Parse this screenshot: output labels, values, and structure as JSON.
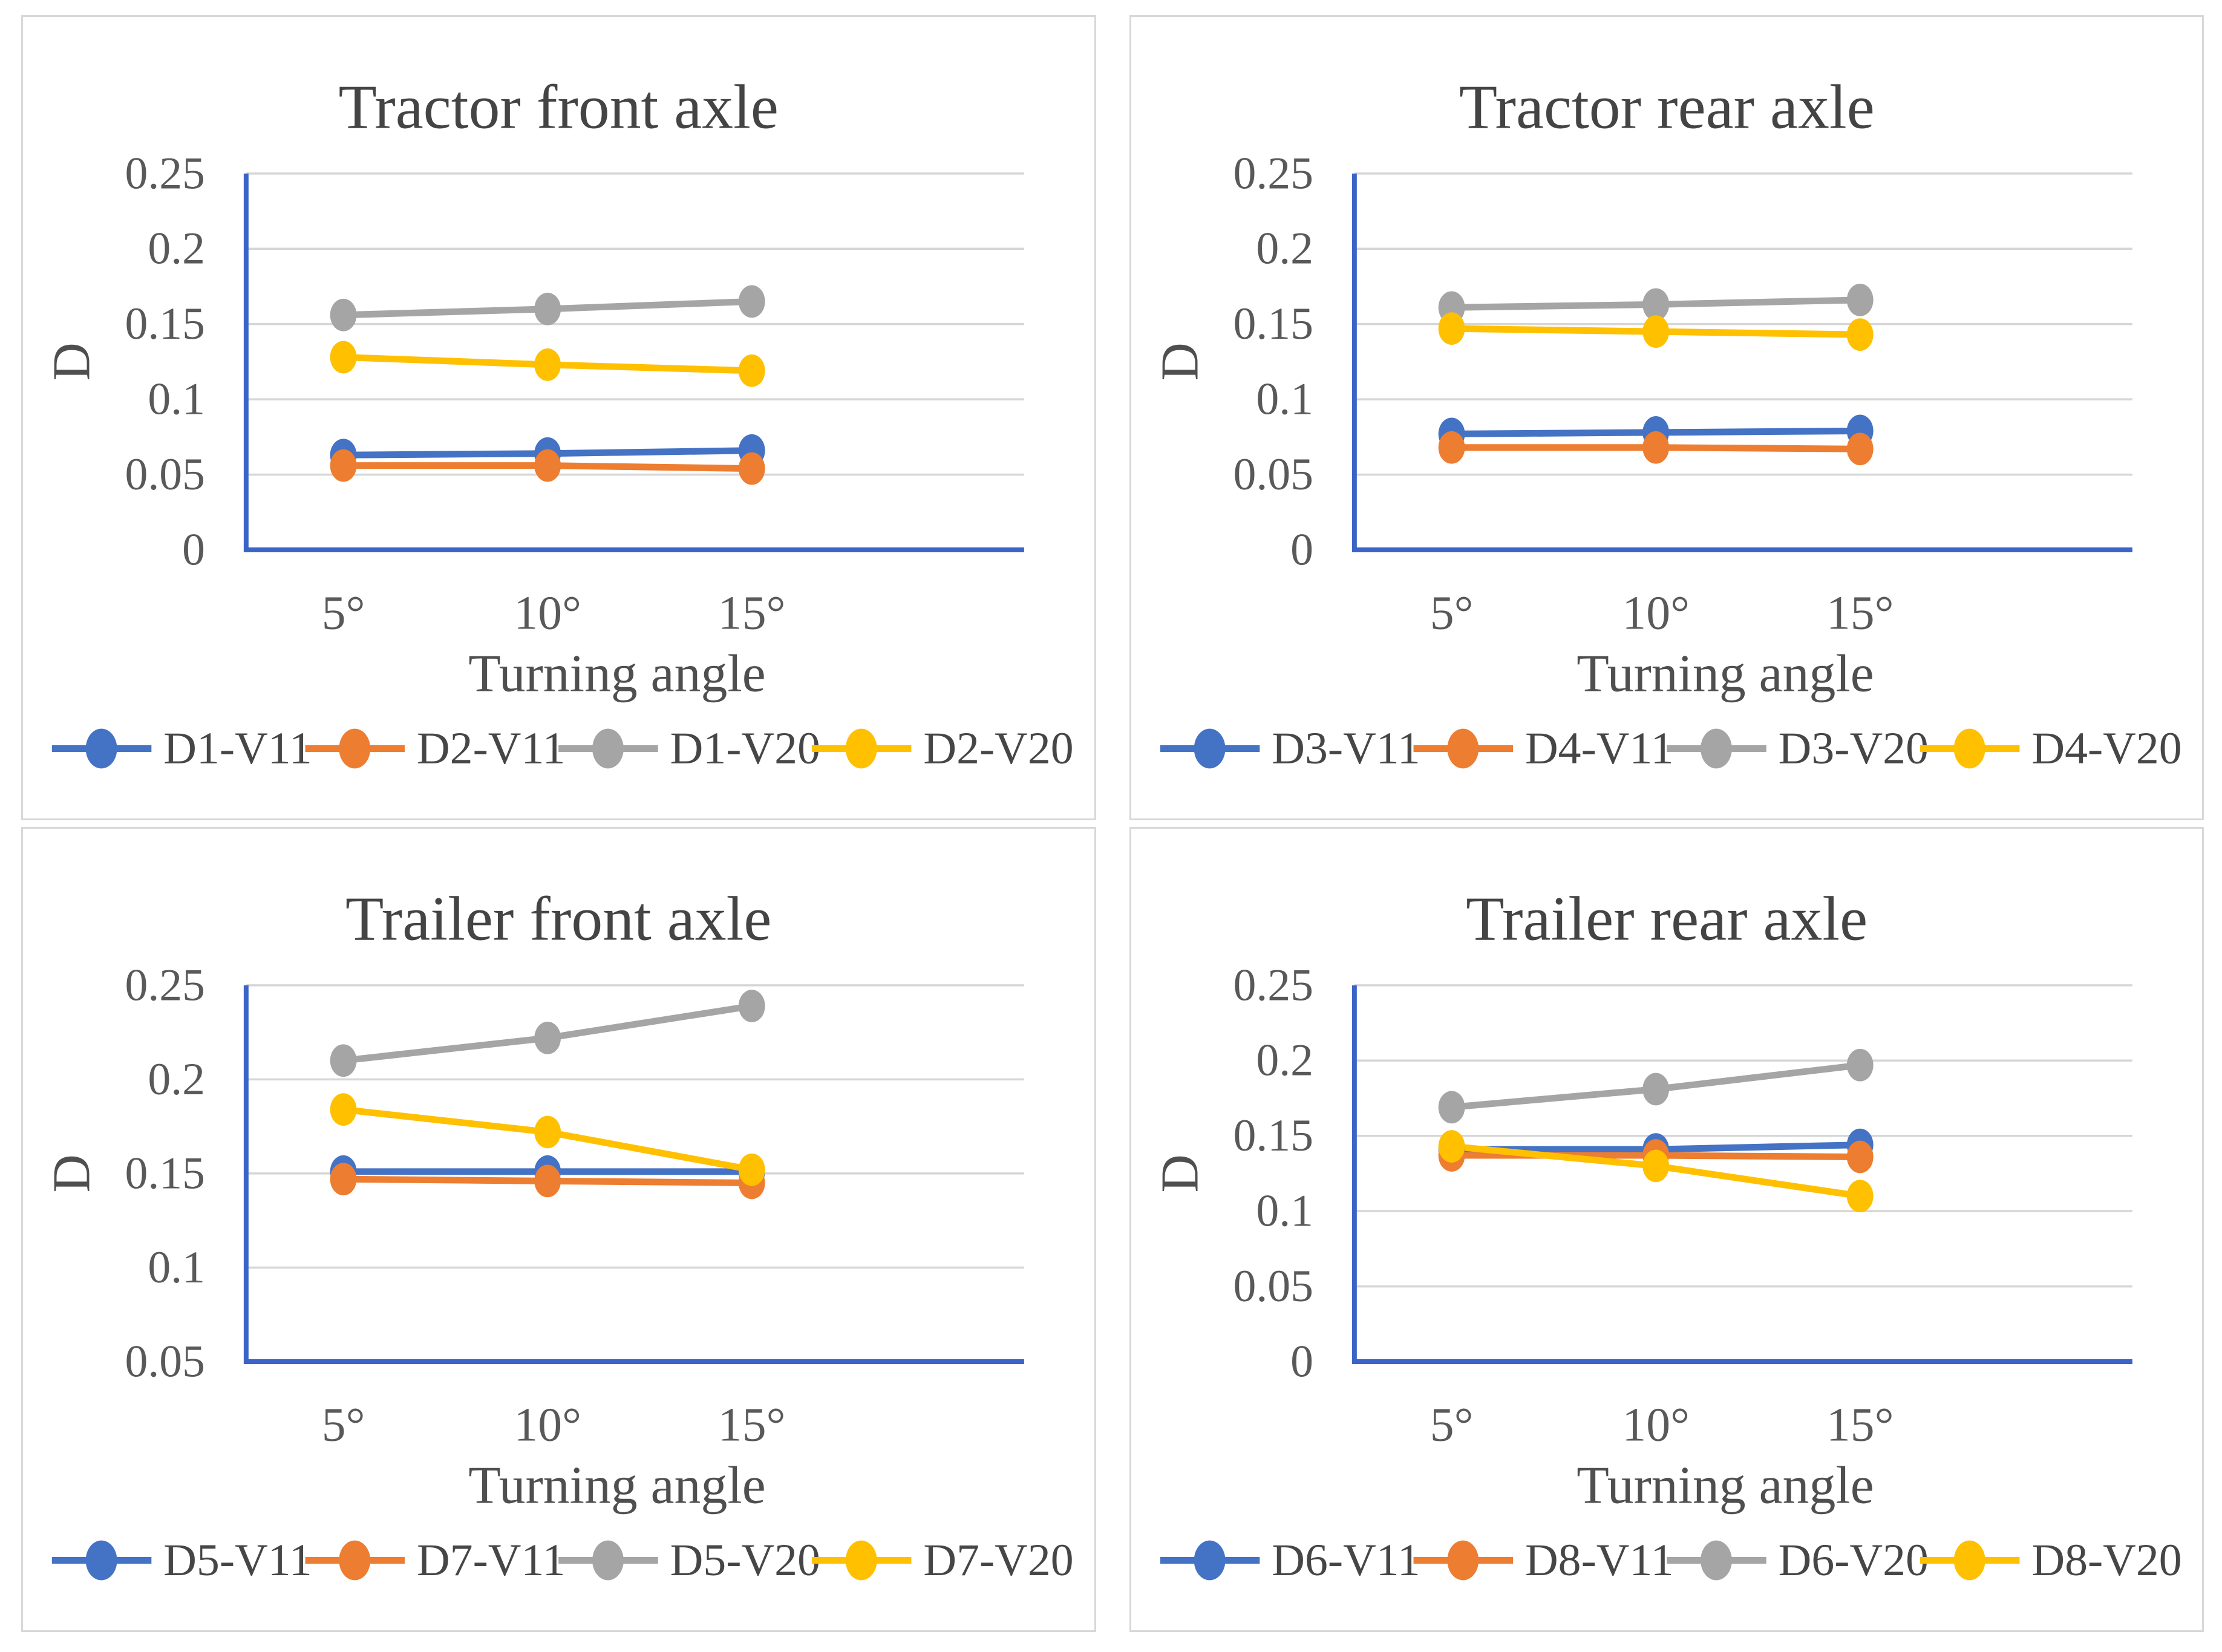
{
  "colors": {
    "series_blue": "#4472C4",
    "series_orange": "#ED7D31",
    "series_gray": "#A5A5A5",
    "series_yellow": "#FFC000",
    "axis_line": "#3B64C8",
    "gridline": "#D6D6D6",
    "tick_text": "#595959",
    "title_text": "#444444",
    "panel_border": "#D8D8D8",
    "background": "#FFFFFF"
  },
  "chart_data": [
    {
      "type": "line",
      "title": "Tractor front axle",
      "xlabel": "Turning angle",
      "ylabel": "D",
      "categories": [
        "5°",
        "10°",
        "15°"
      ],
      "ylim": [
        0,
        0.25
      ],
      "y_ticks": [
        0,
        0.05,
        0.1,
        0.15,
        0.2,
        0.25
      ],
      "y_tick_labels": [
        "0",
        "0.05",
        "0.1",
        "0.15",
        "0.2",
        "0.25"
      ],
      "grid": true,
      "legend_position": "bottom",
      "series": [
        {
          "name": "D1-V11",
          "color": "#4472C4",
          "values": [
            0.063,
            0.064,
            0.066
          ]
        },
        {
          "name": "D2-V11",
          "color": "#ED7D31",
          "values": [
            0.056,
            0.056,
            0.054
          ]
        },
        {
          "name": "D1-V20",
          "color": "#A5A5A5",
          "values": [
            0.156,
            0.16,
            0.165
          ]
        },
        {
          "name": "D2-V20",
          "color": "#FFC000",
          "values": [
            0.128,
            0.123,
            0.119
          ]
        }
      ]
    },
    {
      "type": "line",
      "title": "Tractor rear axle",
      "xlabel": "Turning angle",
      "ylabel": "D",
      "categories": [
        "5°",
        "10°",
        "15°"
      ],
      "ylim": [
        0,
        0.25
      ],
      "y_ticks": [
        0,
        0.05,
        0.1,
        0.15,
        0.2,
        0.25
      ],
      "y_tick_labels": [
        "0",
        "0.05",
        "0.1",
        "0.15",
        "0.2",
        "0.25"
      ],
      "grid": true,
      "legend_position": "bottom",
      "series": [
        {
          "name": "D3-V11",
          "color": "#4472C4",
          "values": [
            0.077,
            0.078,
            0.079
          ]
        },
        {
          "name": "D4-V11",
          "color": "#ED7D31",
          "values": [
            0.068,
            0.068,
            0.067
          ]
        },
        {
          "name": "D3-V20",
          "color": "#A5A5A5",
          "values": [
            0.161,
            0.163,
            0.166
          ]
        },
        {
          "name": "D4-V20",
          "color": "#FFC000",
          "values": [
            0.147,
            0.145,
            0.143
          ]
        }
      ]
    },
    {
      "type": "line",
      "title": "Trailer front axle",
      "xlabel": "Turning angle",
      "ylabel": "D",
      "categories": [
        "5°",
        "10°",
        "15°"
      ],
      "ylim": [
        0.05,
        0.25
      ],
      "y_ticks": [
        0.05,
        0.1,
        0.15,
        0.2,
        0.25
      ],
      "y_tick_labels": [
        "0.05",
        "0.1",
        "0.15",
        "0.2",
        "0.25"
      ],
      "grid": true,
      "legend_position": "bottom",
      "series": [
        {
          "name": "D5-V11",
          "color": "#4472C4",
          "values": [
            0.151,
            0.151,
            0.151
          ]
        },
        {
          "name": "D7-V11",
          "color": "#ED7D31",
          "values": [
            0.147,
            0.146,
            0.145
          ]
        },
        {
          "name": "D5-V20",
          "color": "#A5A5A5",
          "values": [
            0.21,
            0.222,
            0.239
          ]
        },
        {
          "name": "D7-V20",
          "color": "#FFC000",
          "values": [
            0.184,
            0.172,
            0.152
          ]
        }
      ]
    },
    {
      "type": "line",
      "title": "Trailer rear axle",
      "xlabel": "Turning angle",
      "ylabel": "D",
      "categories": [
        "5°",
        "10°",
        "15°"
      ],
      "ylim": [
        0,
        0.25
      ],
      "y_ticks": [
        0,
        0.05,
        0.1,
        0.15,
        0.2,
        0.25
      ],
      "y_tick_labels": [
        "0",
        "0.05",
        "0.1",
        "0.15",
        "0.2",
        "0.25"
      ],
      "grid": true,
      "legend_position": "bottom",
      "series": [
        {
          "name": "D6-V11",
          "color": "#4472C4",
          "values": [
            0.141,
            0.141,
            0.144
          ]
        },
        {
          "name": "D8-V11",
          "color": "#ED7D31",
          "values": [
            0.137,
            0.137,
            0.136
          ]
        },
        {
          "name": "D6-V20",
          "color": "#A5A5A5",
          "values": [
            0.169,
            0.181,
            0.197
          ]
        },
        {
          "name": "D8-V20",
          "color": "#FFC000",
          "values": [
            0.143,
            0.13,
            0.11
          ]
        }
      ]
    }
  ]
}
